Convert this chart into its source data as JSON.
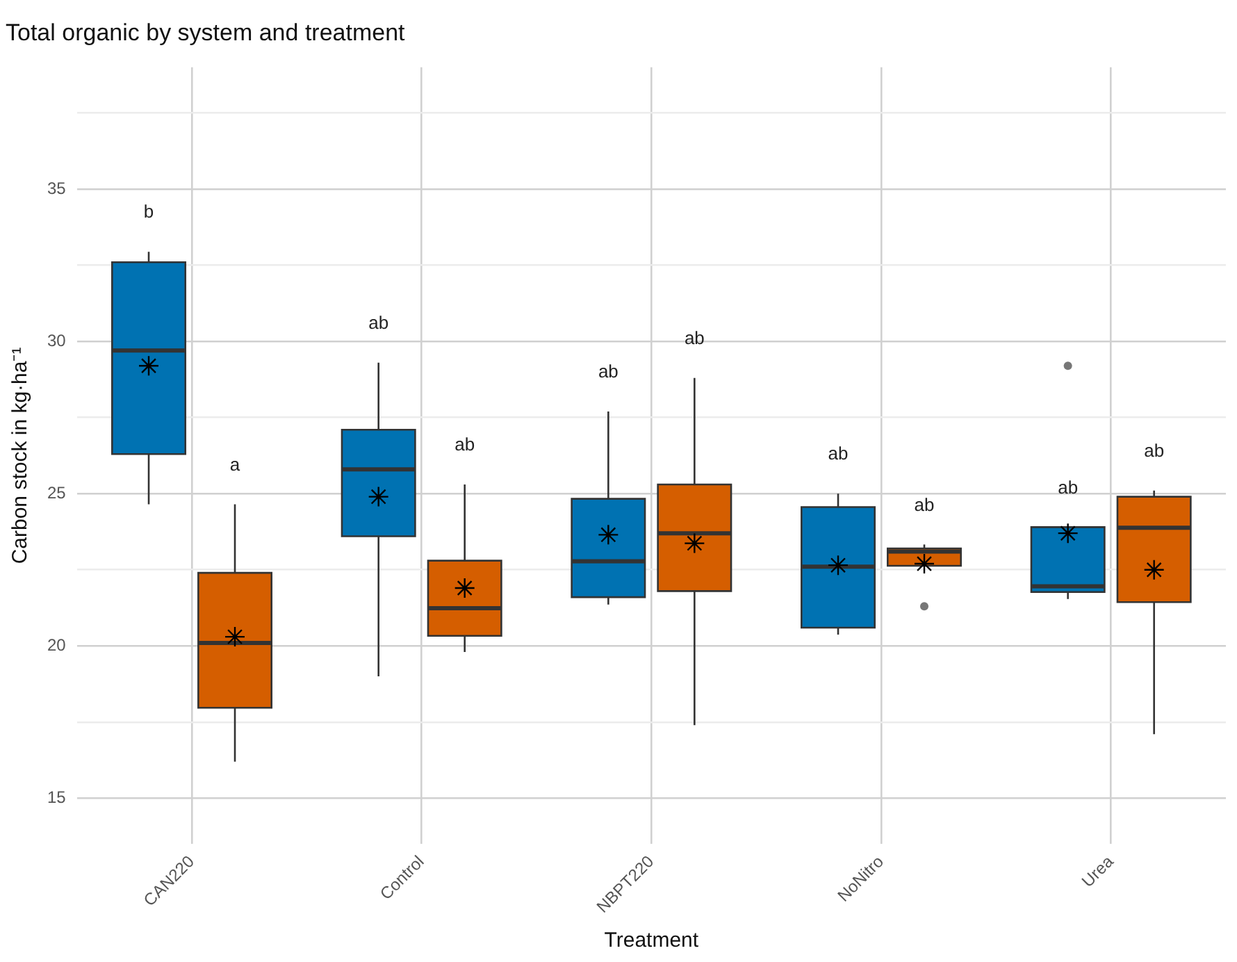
{
  "chart_data": {
    "type": "box",
    "title": "Total organic by system and treatment",
    "xlabel": "Treatment",
    "ylabel": "Carbon stock in kg·ha⁻¹",
    "categories": [
      "CAN220",
      "Control",
      "NBPT220",
      "NoNitro",
      "Urea"
    ],
    "series": [
      {
        "color": "#0072b2",
        "boxes": [
          {
            "low": 24.65,
            "q1": 26.3,
            "median": 29.7,
            "q3": 32.6,
            "high": 32.94,
            "mean": 29.2
          },
          {
            "low": 19.0,
            "q1": 23.6,
            "median": 25.8,
            "q3": 27.1,
            "high": 29.3,
            "mean": 24.9
          },
          {
            "low": 21.36,
            "q1": 21.6,
            "median": 22.78,
            "q3": 24.83,
            "high": 27.7,
            "mean": 23.65
          },
          {
            "low": 20.37,
            "q1": 20.6,
            "median": 22.6,
            "q3": 24.56,
            "high": 25.0,
            "mean": 22.65
          },
          {
            "low": 21.54,
            "q1": 21.77,
            "median": 21.96,
            "q3": 23.9,
            "high": 23.9,
            "mean": 23.7,
            "outliers": [
              29.2
            ]
          }
        ]
      },
      {
        "color": "#d55e00",
        "boxes": [
          {
            "low": 16.2,
            "q1": 17.97,
            "median": 20.1,
            "q3": 22.4,
            "high": 24.65,
            "mean": 20.3
          },
          {
            "low": 19.8,
            "q1": 20.33,
            "median": 21.24,
            "q3": 22.8,
            "high": 25.3,
            "mean": 21.9
          },
          {
            "low": 17.4,
            "q1": 21.8,
            "median": 23.7,
            "q3": 25.3,
            "high": 28.8,
            "mean": 23.37
          },
          {
            "low": 22.63,
            "q1": 22.63,
            "median": 23.1,
            "q3": 23.2,
            "high": 23.33,
            "mean": 22.7,
            "outliers": [
              21.3
            ]
          },
          {
            "low": 17.1,
            "q1": 21.44,
            "median": 23.88,
            "q3": 24.9,
            "high": 25.1,
            "mean": 22.5
          }
        ]
      }
    ],
    "annotations": [
      "b",
      "a",
      "ab",
      "ab",
      "ab",
      "ab",
      "ab",
      "ab",
      "ab",
      "ab"
    ],
    "ylim": [
      13.5,
      39
    ],
    "yticks": [
      15,
      {
        "value": 17.5,
        "label": null
      },
      20,
      {
        "value": 22.5,
        "label": null
      },
      25,
      {
        "value": 27.5,
        "label": null
      },
      30,
      {
        "value": 32.5,
        "label": null
      },
      35,
      {
        "value": 37.5,
        "label": null
      }
    ],
    "grid": true,
    "legend": false,
    "marker": "star"
  }
}
